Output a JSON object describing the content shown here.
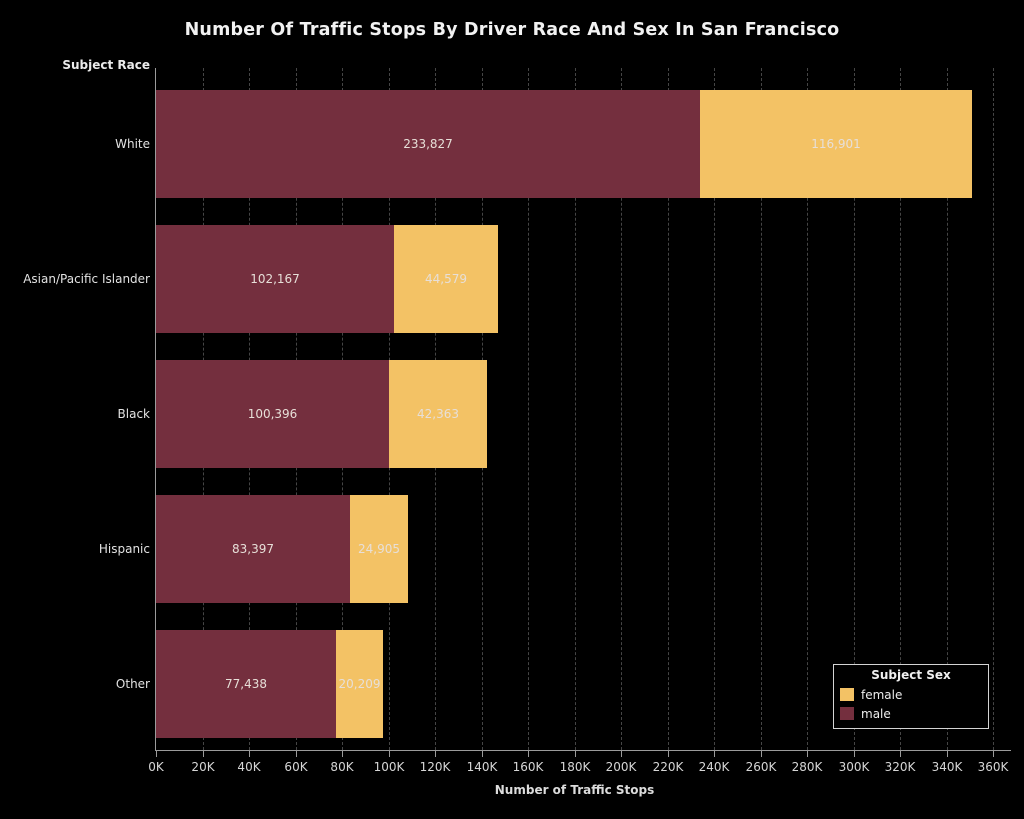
{
  "title": "Number Of Traffic Stops By Driver Race And Sex In San Francisco",
  "row_axis_title": "Subject Race",
  "x_axis_title": "Number of Traffic Stops",
  "colors": {
    "background": "#000000",
    "male": "#742F3E",
    "female": "#F3C265",
    "gridline": "#454545",
    "axis_line": "#9B9B9B",
    "bar_label_text": "#E7DFD8",
    "axis_text": "#D6D6D6",
    "title_text": "#F2F2F2"
  },
  "chart_data": {
    "type": "bar",
    "orientation": "horizontal",
    "stacked": true,
    "grid": true,
    "title": "Number Of Traffic Stops By Driver Race And Sex In San Francisco",
    "xlabel": "Number of Traffic Stops",
    "ylabel": "Subject Race",
    "categories": [
      "White",
      "Asian/Pacific Islander",
      "Black",
      "Hispanic",
      "Other"
    ],
    "series": [
      {
        "name": "male",
        "color": "#742F3E",
        "values": [
          233827,
          102167,
          100396,
          83397,
          77438
        ],
        "labels": [
          "233,827",
          "102,167",
          "100,396",
          "83,397",
          "77,438"
        ]
      },
      {
        "name": "female",
        "color": "#F3C265",
        "values": [
          116901,
          44579,
          42363,
          24905,
          20209
        ],
        "labels": [
          "116,901",
          "44,579",
          "42,363",
          "24,905",
          "20,209"
        ]
      }
    ],
    "xlim": [
      0,
      360000
    ],
    "x_tick_step": 20000,
    "x_tick_labels": [
      "0K",
      "20K",
      "40K",
      "60K",
      "80K",
      "100K",
      "120K",
      "140K",
      "160K",
      "180K",
      "200K",
      "220K",
      "240K",
      "260K",
      "280K",
      "300K",
      "320K",
      "340K",
      "360K"
    ],
    "legend": {
      "title": "Subject Sex",
      "position": "bottom-right",
      "entries": [
        {
          "label": "female",
          "color": "#F3C265"
        },
        {
          "label": "male",
          "color": "#742F3E"
        }
      ]
    }
  }
}
